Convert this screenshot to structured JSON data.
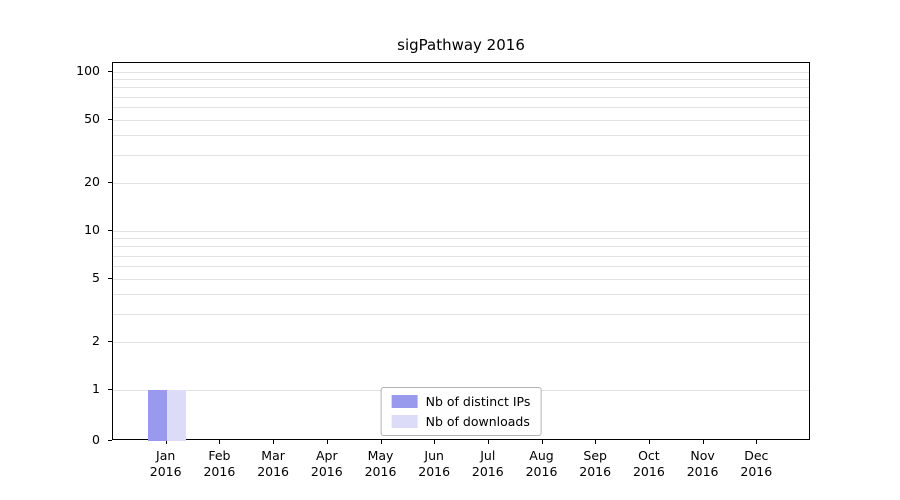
{
  "title": "sigPathway 2016",
  "chart_data": {
    "type": "bar",
    "title": "sigPathway 2016",
    "categories": [
      "Jan 2016",
      "Feb 2016",
      "Mar 2016",
      "Apr 2016",
      "May 2016",
      "Jun 2016",
      "Jul 2016",
      "Aug 2016",
      "Sep 2016",
      "Oct 2016",
      "Nov 2016",
      "Dec 2016"
    ],
    "series": [
      {
        "name": "Nb of distinct IPs",
        "color": "#9999ee",
        "values": [
          1,
          0,
          0,
          0,
          0,
          0,
          0,
          0,
          0,
          0,
          0,
          0
        ]
      },
      {
        "name": "Nb of downloads",
        "color": "#dcdcf8",
        "values": [
          1,
          0,
          0,
          0,
          0,
          0,
          0,
          0,
          0,
          0,
          0,
          0
        ]
      }
    ],
    "yscale": "log above 1, linear 0-1",
    "ylim": [
      0,
      115
    ],
    "yticks": [
      {
        "value": 0,
        "label": "0"
      },
      {
        "value": 1,
        "label": "1"
      },
      {
        "value": 2,
        "label": "2"
      },
      {
        "value": 5,
        "label": "5"
      },
      {
        "value": 10,
        "label": "10"
      },
      {
        "value": 20,
        "label": "20"
      },
      {
        "value": 50,
        "label": "50"
      },
      {
        "value": 100,
        "label": "100"
      }
    ],
    "grid_values": [
      1,
      2,
      3,
      4,
      5,
      6,
      7,
      8,
      9,
      10,
      20,
      30,
      40,
      50,
      60,
      70,
      80,
      90,
      100
    ],
    "grid": "horizontal",
    "legend_position": "lower center inside"
  },
  "legend": {
    "items": [
      {
        "label": "Nb of distinct IPs",
        "color": "#9999ee"
      },
      {
        "label": "Nb of downloads",
        "color": "#dcdcf8"
      }
    ]
  }
}
